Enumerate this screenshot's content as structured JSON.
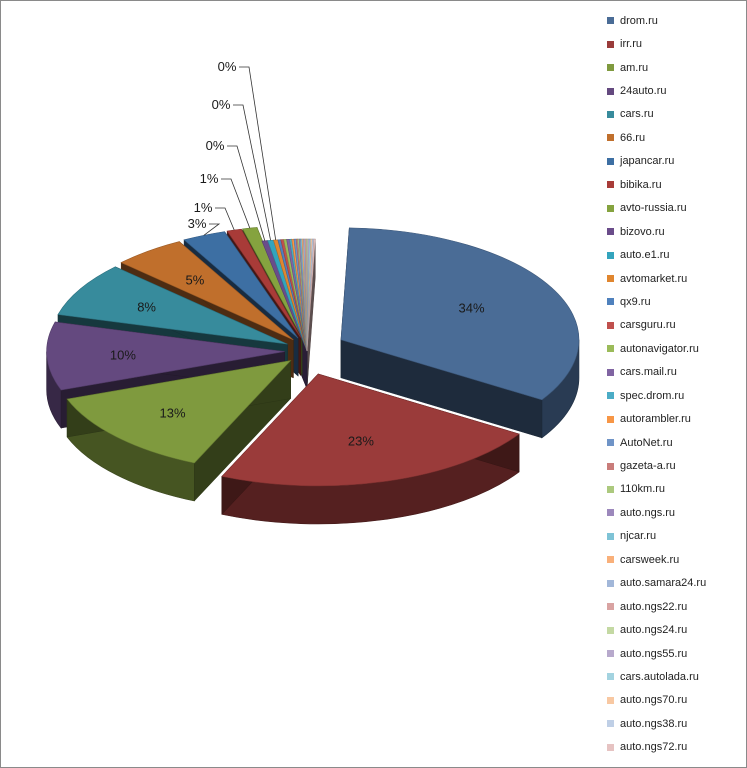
{
  "chart_data": {
    "type": "pie",
    "style": "3d-exploded",
    "legend_position": "right",
    "slices": [
      {
        "name": "drom.ru",
        "value": 34,
        "label": "34%",
        "color": "#4a6c96"
      },
      {
        "name": "irr.ru",
        "value": 23,
        "label": "23%",
        "color": "#9a3b3a"
      },
      {
        "name": "am.ru",
        "value": 13,
        "label": "13%",
        "color": "#7f9a3e"
      },
      {
        "name": "24auto.ru",
        "value": 10,
        "label": "10%",
        "color": "#64497f"
      },
      {
        "name": "cars.ru",
        "value": 8,
        "label": "8%",
        "color": "#378b9c"
      },
      {
        "name": "66.ru",
        "value": 5,
        "label": "5%",
        "color": "#c06f2c"
      },
      {
        "name": "japancar.ru",
        "value": 3,
        "label": "3%",
        "color": "#3d6fa3"
      },
      {
        "name": "bibika.ru",
        "value": 1,
        "label": "1%",
        "color": "#a83b38"
      },
      {
        "name": "avto-russia.ru",
        "value": 1,
        "label": "1%",
        "color": "#85a33f"
      },
      {
        "name": "bizovo.ru",
        "value": 0.4,
        "label": "0%",
        "color": "#6a4c8a"
      },
      {
        "name": "auto.e1.ru",
        "value": 0.4,
        "label": "0%",
        "color": "#33a4bd"
      },
      {
        "name": "avtomarket.ru",
        "value": 0.3,
        "label": "0%",
        "color": "#e0862f"
      },
      {
        "name": "qx9.ru",
        "value": 0.2,
        "label": "",
        "color": "#4f81bd"
      },
      {
        "name": "carsguru.ru",
        "value": 0.2,
        "label": "",
        "color": "#c0504d"
      },
      {
        "name": "autonavigator.ru",
        "value": 0.2,
        "label": "",
        "color": "#9bbb59"
      },
      {
        "name": "cars.mail.ru",
        "value": 0.2,
        "label": "",
        "color": "#8064a2"
      },
      {
        "name": "spec.drom.ru",
        "value": 0.15,
        "label": "",
        "color": "#4bacc6"
      },
      {
        "name": "autorambler.ru",
        "value": 0.15,
        "label": "",
        "color": "#f79646"
      },
      {
        "name": "AutoNet.ru",
        "value": 0.15,
        "label": "",
        "color": "#6f94c7"
      },
      {
        "name": "gazeta-a.ru",
        "value": 0.1,
        "label": "",
        "color": "#c97c7a"
      },
      {
        "name": "110km.ru",
        "value": 0.1,
        "label": "",
        "color": "#acc97e"
      },
      {
        "name": "auto.ngs.ru",
        "value": 0.1,
        "label": "",
        "color": "#9c88bc"
      },
      {
        "name": "njcar.ru",
        "value": 0.1,
        "label": "",
        "color": "#7ec3d6"
      },
      {
        "name": "carsweek.ru",
        "value": 0.1,
        "label": "",
        "color": "#f9b07a"
      },
      {
        "name": "auto.samara24.ru",
        "value": 0.1,
        "label": "",
        "color": "#a2b7d9"
      },
      {
        "name": "auto.ngs22.ru",
        "value": 0.1,
        "label": "",
        "color": "#d9a3a2"
      },
      {
        "name": "auto.ngs24.ru",
        "value": 0.1,
        "label": "",
        "color": "#c4d9a3"
      },
      {
        "name": "auto.ngs55.ru",
        "value": 0.1,
        "label": "",
        "color": "#b7a9cc"
      },
      {
        "name": "cars.autolada.ru",
        "value": 0.1,
        "label": "",
        "color": "#a3d3e0"
      },
      {
        "name": "auto.ngs70.ru",
        "value": 0.1,
        "label": "",
        "color": "#f8c8a2"
      },
      {
        "name": "auto.ngs38.ru",
        "value": 0.1,
        "label": "",
        "color": "#bfcfe6"
      },
      {
        "name": "auto.ngs72.ru",
        "value": 0.1,
        "label": "",
        "color": "#e6c3c2"
      }
    ]
  }
}
